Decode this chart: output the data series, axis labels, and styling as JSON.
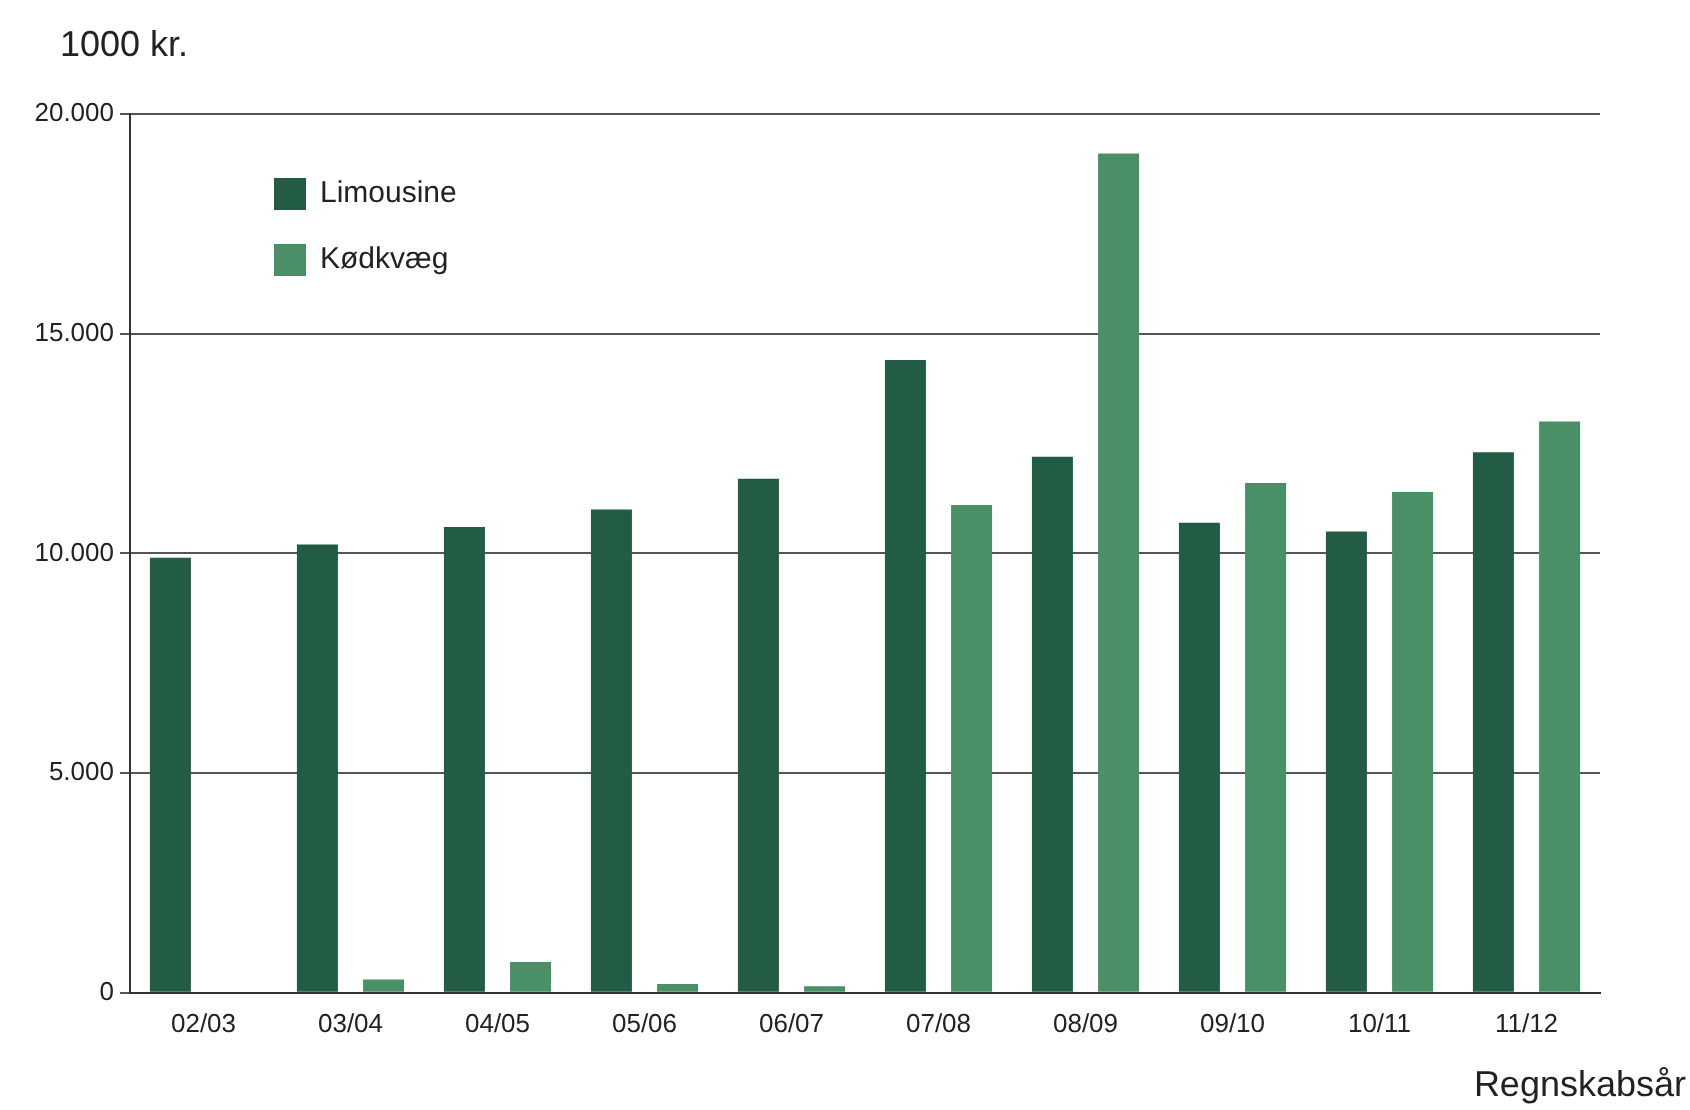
{
  "chart_data": {
    "type": "bar",
    "ylabel": "1000 kr.",
    "xlabel": "Regnskabsår",
    "categories": [
      "02/03",
      "03/04",
      "04/05",
      "05/06",
      "06/07",
      "07/08",
      "08/09",
      "09/10",
      "10/11",
      "11/12"
    ],
    "series": [
      {
        "name": "Limousine",
        "color": "#235c45",
        "values": [
          9900,
          10200,
          10600,
          11000,
          11700,
          14400,
          12200,
          10700,
          10500,
          12300
        ]
      },
      {
        "name": "Kødkvæg",
        "color": "#4a8f65",
        "values": [
          null,
          300,
          700,
          200,
          150,
          11100,
          19100,
          11600,
          11400,
          13000
        ]
      }
    ],
    "ylim": [
      0,
      20000
    ],
    "yticks": [
      {
        "value": 0,
        "label": "0"
      },
      {
        "value": 5000,
        "label": "5.000"
      },
      {
        "value": 10000,
        "label": "10.000"
      },
      {
        "value": 15000,
        "label": "15.000"
      },
      {
        "value": 20000,
        "label": "20.000"
      }
    ],
    "grid": "y",
    "legend": "top left"
  }
}
